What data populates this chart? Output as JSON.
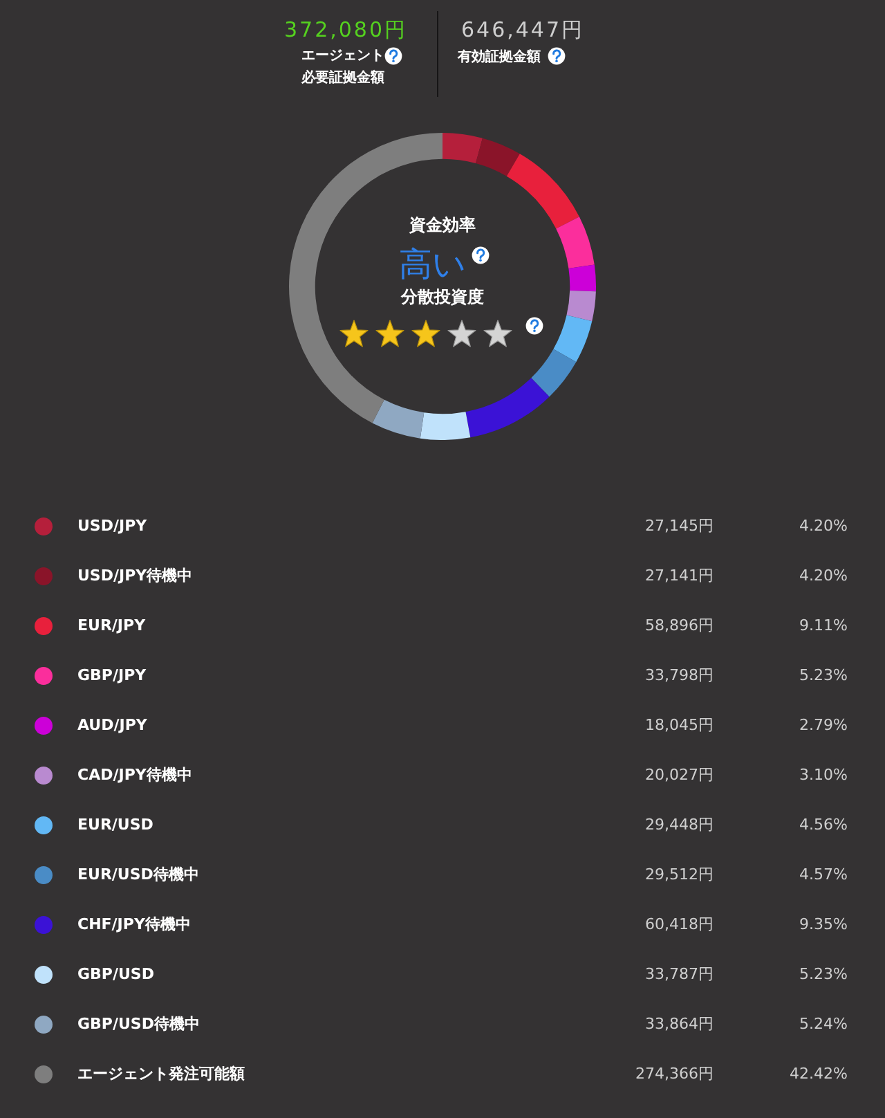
{
  "chart_data": {
    "type": "donut",
    "categories": [
      "USD/JPY",
      "USD/JPY待機中",
      "EUR/JPY",
      "GBP/JPY",
      "AUD/JPY",
      "CAD/JPY待機中",
      "EUR/USD",
      "EUR/USD待機中",
      "CHF/JPY待機中",
      "GBP/USD",
      "GBP/USD待機中",
      "エージェント発注可能額"
    ],
    "values": [
      27145,
      27141,
      58896,
      33798,
      18045,
      20027,
      29448,
      29512,
      60418,
      33787,
      33864,
      274366
    ],
    "colors": [
      "#b51f3b",
      "#8a1429",
      "#e8203c",
      "#fb2e9c",
      "#cc00d8",
      "#b98ad0",
      "#62b8f5",
      "#4a8cc6",
      "#3b12d6",
      "#c0e2fb",
      "#8fa8c2",
      "#7e7e7e"
    ],
    "value_labels": [
      "27,145円",
      "27,141円",
      "58,896円",
      "33,798円",
      "18,045円",
      "20,027円",
      "29,448円",
      "29,512円",
      "60,418円",
      "33,787円",
      "33,864円",
      "274,366円"
    ],
    "legend": "bottom",
    "annotations": [
      "372,080円",
      "エージェント必要証拠金額",
      "646,447円",
      "有効証拠金額",
      "資金効率",
      "高い",
      "分散投資度",
      {
        "text": "4.20%",
        "x": "USD/JPY"
      },
      {
        "text": "4.20%",
        "x": "USD/JPY待機中"
      },
      {
        "text": "9.11%",
        "x": "EUR/JPY"
      },
      {
        "text": "5.23%",
        "x": "GBP/JPY"
      },
      {
        "text": "2.79%",
        "x": "AUD/JPY"
      },
      {
        "text": "3.10%",
        "x": "CAD/JPY待機中"
      },
      {
        "text": "4.56%",
        "x": "EUR/USD"
      },
      {
        "text": "4.57%",
        "x": "EUR/USD待機中"
      },
      {
        "text": "9.35%",
        "x": "CHF/JPY待機中"
      },
      {
        "text": "5.23%",
        "x": "GBP/USD"
      },
      {
        "text": "5.24%",
        "x": "GBP/USD待機中"
      },
      {
        "text": "42.42%",
        "x": "エージェント発注可能額"
      }
    ]
  }
}
